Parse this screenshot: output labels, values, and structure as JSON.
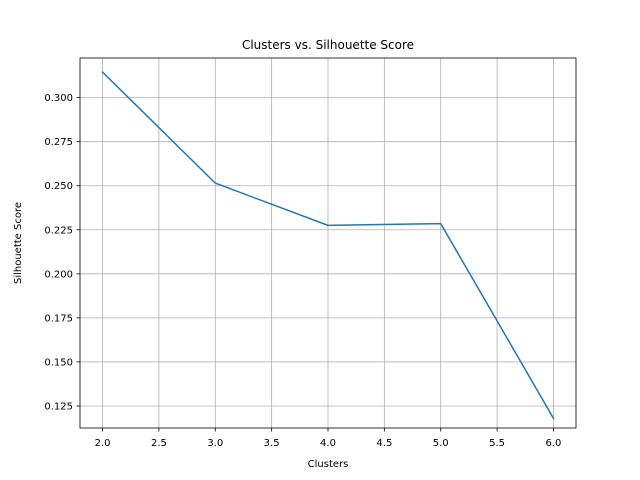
{
  "chart_data": {
    "type": "line",
    "title": "Clusters vs. Silhouette Score",
    "xlabel": "Clusters",
    "ylabel": "Silhouette Score",
    "xlim": [
      1.8,
      6.2
    ],
    "ylim": [
      0.1125,
      0.3225
    ],
    "xticks": [
      "2.0",
      "2.5",
      "3.0",
      "3.5",
      "4.0",
      "4.5",
      "5.0",
      "5.5",
      "6.0"
    ],
    "yticks": [
      "0.125",
      "0.150",
      "0.175",
      "0.200",
      "0.225",
      "0.250",
      "0.275",
      "0.300"
    ],
    "grid": true,
    "series": [
      {
        "color": "#1f77b4",
        "x": [
          2,
          3,
          4,
          5,
          6
        ],
        "y": [
          0.3145,
          0.2515,
          0.2275,
          0.2285,
          0.118
        ]
      }
    ]
  }
}
